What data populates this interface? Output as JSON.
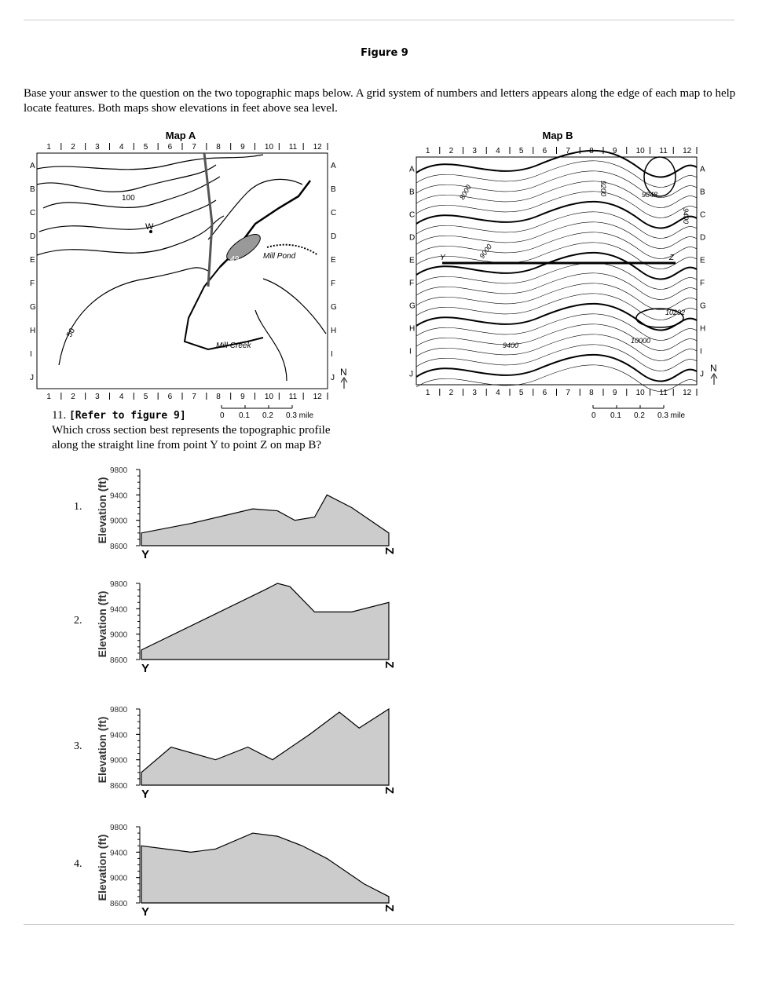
{
  "figure_title": "Figure 9",
  "intro": "Base your answer to the question on the two topographic maps below. A grid system of numbers and letters appears along the edge of each map to help locate features. Both maps show elevations in feet above sea level.",
  "map_a": {
    "title": "Map A",
    "columns": [
      "1",
      "2",
      "3",
      "4",
      "5",
      "6",
      "7",
      "8",
      "9",
      "10",
      "11",
      "12"
    ],
    "rows": [
      "A",
      "B",
      "C",
      "D",
      "E",
      "F",
      "G",
      "H",
      "I",
      "J"
    ],
    "labels": {
      "c100": "100",
      "c50": "50",
      "w": "W",
      "pond_elev": "49",
      "pond": "Mill Pond",
      "creek": "Mill Creek",
      "north": "N"
    },
    "scale": [
      "0",
      "0.1",
      "0.2",
      "0.3 mile"
    ]
  },
  "map_b": {
    "title": "Map B",
    "columns": [
      "1",
      "2",
      "3",
      "4",
      "5",
      "6",
      "7",
      "8",
      "9",
      "10",
      "11",
      "12"
    ],
    "rows": [
      "A",
      "B",
      "C",
      "D",
      "E",
      "F",
      "G",
      "H",
      "I",
      "J"
    ],
    "labels": {
      "c8000": "8000",
      "c9000": "9000",
      "c9200": "9200",
      "c9400a": "9400",
      "c9400b": "9400",
      "c10000": "10000",
      "p9848": "9848",
      "p10292": "10292",
      "y": "Y",
      "z": "Z",
      "north": "N"
    },
    "scale": [
      "0",
      "0.1",
      "0.2",
      "0.3 mile"
    ]
  },
  "question": {
    "number": "11.",
    "ref": "[Refer to figure 9]",
    "text": "Which cross section best represents the topographic profile along the straight line from point Y to point Z on map B?"
  },
  "chart_data": [
    {
      "type": "area",
      "option": "1.",
      "ylabel": "Elevation (ft)",
      "yticks": [
        "9800",
        "9400",
        "9000",
        "8600"
      ],
      "ylim": [
        8600,
        9800
      ],
      "xlabels": [
        "Y",
        "Z"
      ],
      "x": [
        0,
        0.2,
        0.45,
        0.55,
        0.62,
        0.7,
        0.75,
        0.85,
        1
      ],
      "y": [
        8800,
        8950,
        9180,
        9150,
        9000,
        9050,
        9400,
        9200,
        8800
      ]
    },
    {
      "type": "area",
      "option": "2.",
      "ylabel": "Elevation (ft)",
      "yticks": [
        "9800",
        "9400",
        "9000",
        "8600"
      ],
      "ylim": [
        8600,
        9800
      ],
      "xlabels": [
        "Y",
        "Z"
      ],
      "x": [
        0,
        0.5,
        0.55,
        0.6,
        0.7,
        0.85,
        1
      ],
      "y": [
        8750,
        9700,
        9800,
        9750,
        9350,
        9350,
        9500
      ]
    },
    {
      "type": "area",
      "option": "3.",
      "ylabel": "Elevation (ft)",
      "yticks": [
        "9800",
        "9400",
        "9000",
        "8600"
      ],
      "ylim": [
        8600,
        9800
      ],
      "xlabels": [
        "Y",
        "Z"
      ],
      "x": [
        0,
        0.12,
        0.3,
        0.43,
        0.53,
        0.68,
        0.8,
        0.88,
        1
      ],
      "y": [
        8800,
        9200,
        9000,
        9200,
        9000,
        9400,
        9750,
        9500,
        9800
      ]
    },
    {
      "type": "area",
      "option": "4.",
      "ylabel": "Elevation (ft)",
      "yticks": [
        "9800",
        "9400",
        "9000",
        "8600"
      ],
      "ylim": [
        8600,
        9800
      ],
      "xlabels": [
        "Y",
        "Z"
      ],
      "x": [
        0,
        0.2,
        0.3,
        0.45,
        0.55,
        0.65,
        0.75,
        0.9,
        1
      ],
      "y": [
        9500,
        9400,
        9450,
        9700,
        9650,
        9500,
        9300,
        8900,
        8700
      ]
    }
  ]
}
